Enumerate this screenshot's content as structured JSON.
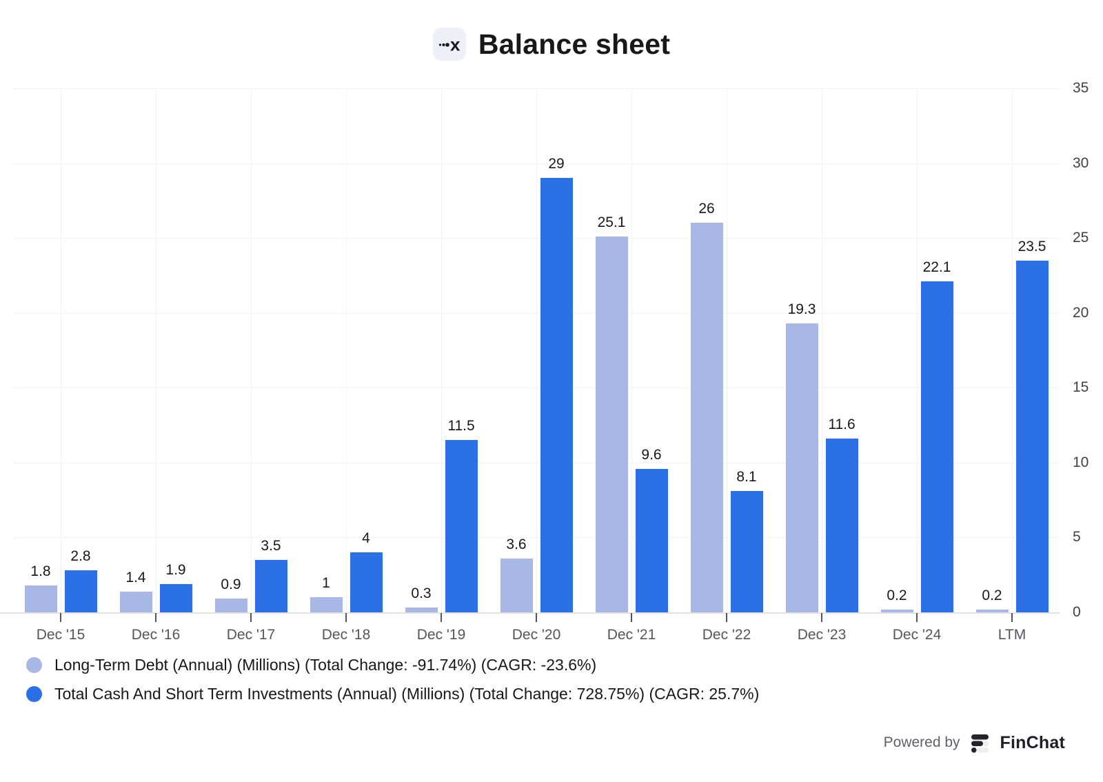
{
  "header": {
    "title": "Balance sheet",
    "logo_icon": "ticker-x-logo"
  },
  "chart_data": {
    "type": "bar",
    "title": "Balance sheet",
    "categories": [
      "Dec '15",
      "Dec '16",
      "Dec '17",
      "Dec '18",
      "Dec '19",
      "Dec '20",
      "Dec '21",
      "Dec '22",
      "Dec '23",
      "Dec '24",
      "LTM"
    ],
    "series": [
      {
        "name": "Long-Term Debt (Annual) (Millions)",
        "legend_label": "Long-Term Debt (Annual) (Millions) (Total Change: -91.74%) (CAGR: -23.6%)",
        "color": "#a8b7e3",
        "values": [
          1.8,
          1.4,
          0.9,
          1,
          0.3,
          3.6,
          25.1,
          26,
          19.3,
          0.2,
          0.2
        ]
      },
      {
        "name": "Total Cash And Short Term Investments (Annual) (Millions)",
        "legend_label": "Total Cash And Short Term Investments (Annual) (Millions) (Total Change: 728.75%) (CAGR: 25.7%)",
        "color": "#2b70e6",
        "values": [
          2.8,
          1.9,
          3.5,
          4,
          11.5,
          29,
          9.6,
          8.1,
          11.6,
          22.1,
          23.5
        ]
      }
    ],
    "xlabel": "",
    "ylabel": "",
    "ylim": [
      0,
      35
    ],
    "y_ticks": [
      0,
      5,
      10,
      15,
      20,
      25,
      30,
      35
    ],
    "y_axis_side": "right",
    "grid": true,
    "legend_position": "bottom-left"
  },
  "footer": {
    "powered_by": "Powered by",
    "brand": "FinChat",
    "brand_icon": "finchat-logo"
  }
}
